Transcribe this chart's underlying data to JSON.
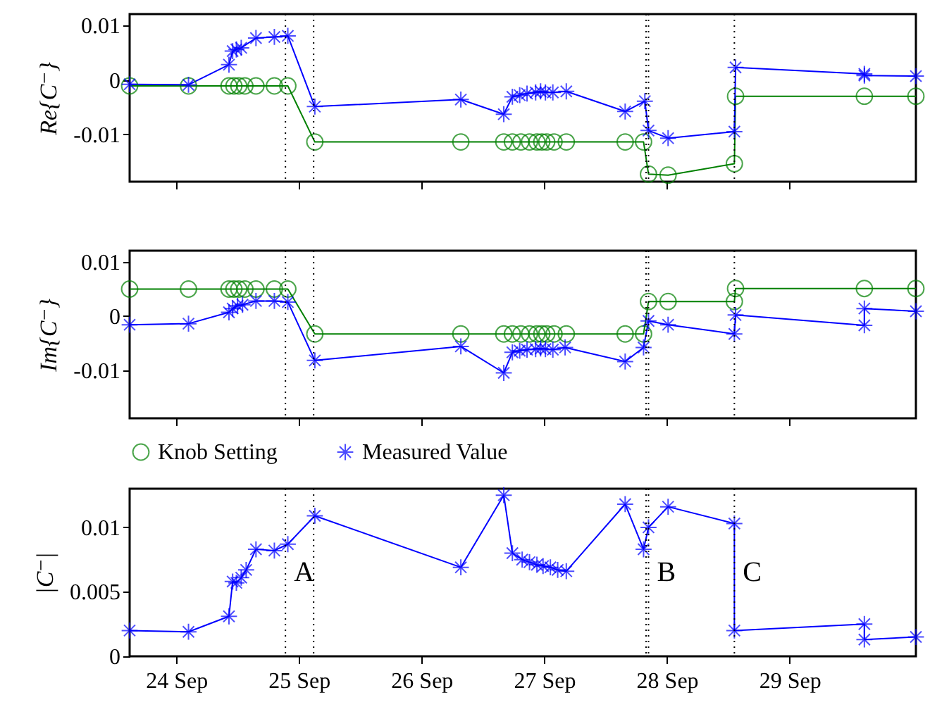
{
  "chart_data": [
    {
      "type": "line",
      "ylabel": "Re{C⁻}",
      "xlim": [
        "--09-23T14:53",
        "--09-30T00:43"
      ],
      "ylim": [
        -0.0187,
        0.0121
      ],
      "yticks": [
        -0.01,
        0,
        0.01
      ],
      "xticks": [
        {
          "value": "--09-24",
          "label": "24 Sep"
        },
        {
          "value": "--09-25",
          "label": "25 Sep"
        },
        {
          "value": "--09-26",
          "label": "26 Sep"
        },
        {
          "value": "--09-27",
          "label": "27 Sep"
        },
        {
          "value": "--09-28",
          "label": "28 Sep"
        },
        {
          "value": "--09-29",
          "label": "29 Sep"
        }
      ],
      "tick_labels": "y",
      "grid": false,
      "ref_lines": [
        {
          "axis": "x",
          "value": "--09-24T21:22",
          "line_style": "dotted"
        },
        {
          "axis": "x",
          "value": "--09-25T02:53",
          "line_style": "dotted"
        },
        {
          "axis": "x",
          "value": "--09-27T19:55",
          "line_style": "dotted"
        },
        {
          "axis": "x",
          "value": "--09-27T20:24",
          "line_style": "dotted"
        },
        {
          "axis": "x",
          "value": "--09-28T13:12",
          "line_style": "dotted"
        }
      ],
      "series": [
        {
          "color": "#008000",
          "marker": "circle",
          "x": [
            "--09-23T14:53",
            "--09-24T02:24",
            "--09-24T10:19",
            "--09-24T11:17",
            "--09-24T12:14",
            "--09-24T13:26",
            "--09-24T15:36",
            "--09-24T19:12",
            "--09-24T21:50",
            "--09-25T03:07",
            "--09-26T07:41",
            "--09-26T16:05",
            "--09-26T17:46",
            "--09-26T19:26",
            "--09-26T21:07",
            "--09-26T22:34",
            "--09-26T23:31",
            "--09-27T00:29",
            "--09-27T01:55",
            "--09-27T04:19",
            "--09-27T15:50",
            "--09-27T19:26",
            "--09-27T20:24",
            "--09-28T00:14",
            "--09-28T13:12",
            "--09-28T13:26",
            "--09-29T14:38",
            "--09-30T00:43"
          ],
          "values": [
            -0.0011,
            -0.0011,
            -0.0011,
            -0.0011,
            -0.0011,
            -0.0011,
            -0.0011,
            -0.0011,
            -0.0011,
            -0.0114,
            -0.0114,
            -0.0114,
            -0.0114,
            -0.0114,
            -0.0114,
            -0.0114,
            -0.0114,
            -0.0114,
            -0.0114,
            -0.0114,
            -0.0114,
            -0.0114,
            -0.0173,
            -0.0175,
            -0.0154,
            -0.003,
            -0.003,
            -0.003
          ]
        },
        {
          "color": "#0000ff",
          "marker": "cross",
          "x": [
            "--09-23T14:53",
            "--09-24T02:24",
            "--09-24T10:19",
            "--09-24T11:02",
            "--09-24T11:46",
            "--09-24T12:43",
            "--09-24T15:36",
            "--09-24T19:12",
            "--09-24T21:50",
            "--09-25T03:07",
            "--09-26T07:41",
            "--09-26T16:05",
            "--09-26T17:46",
            "--09-26T19:12",
            "--09-26T20:38",
            "--09-26T22:19",
            "--09-26T23:17",
            "--09-27T00:14",
            "--09-27T01:41",
            "--09-27T04:19",
            "--09-27T15:50",
            "--09-27T19:41",
            "--09-27T20:24",
            "--09-28T00:14",
            "--09-28T13:12",
            "--09-28T13:26",
            "--09-29T14:38",
            "--09-29T14:38",
            "--09-30T00:43"
          ],
          "values": [
            -0.0008,
            -0.0009,
            0.0028,
            0.0053,
            0.0056,
            0.0059,
            0.0077,
            0.0079,
            0.0081,
            -0.0049,
            -0.0036,
            -0.0063,
            -0.0031,
            -0.0028,
            -0.0025,
            -0.0023,
            -0.0021,
            -0.0023,
            -0.0023,
            -0.0021,
            -0.0058,
            -0.0039,
            -0.0093,
            -0.0107,
            -0.0095,
            0.0023,
            0.0011,
            0.0008,
            0.0007
          ]
        }
      ]
    },
    {
      "type": "line",
      "ylabel": "Im{C⁻}",
      "xlim": [
        "--09-23T14:53",
        "--09-30T00:43"
      ],
      "ylim": [
        -0.0189,
        0.0121
      ],
      "yticks": [
        -0.01,
        0,
        0.01
      ],
      "xticks": [
        {
          "value": "--09-24",
          "label": "24 Sep"
        },
        {
          "value": "--09-25",
          "label": "25 Sep"
        },
        {
          "value": "--09-26",
          "label": "26 Sep"
        },
        {
          "value": "--09-27",
          "label": "27 Sep"
        },
        {
          "value": "--09-28",
          "label": "28 Sep"
        },
        {
          "value": "--09-29",
          "label": "29 Sep"
        }
      ],
      "tick_labels": "y",
      "legend": "bottom",
      "grid": false,
      "ref_lines": [
        {
          "axis": "x",
          "value": "--09-24T21:22",
          "line_style": "dotted"
        },
        {
          "axis": "x",
          "value": "--09-25T02:53",
          "line_style": "dotted"
        },
        {
          "axis": "x",
          "value": "--09-27T19:55",
          "line_style": "dotted"
        },
        {
          "axis": "x",
          "value": "--09-27T20:24",
          "line_style": "dotted"
        },
        {
          "axis": "x",
          "value": "--09-28T13:12",
          "line_style": "dotted"
        }
      ],
      "series": [
        {
          "name": "Knob Setting",
          "color": "#008000",
          "marker": "circle",
          "x": [
            "--09-23T14:53",
            "--09-24T02:24",
            "--09-24T10:19",
            "--09-24T11:17",
            "--09-24T12:14",
            "--09-24T13:26",
            "--09-24T15:36",
            "--09-24T19:12",
            "--09-24T21:50",
            "--09-25T03:07",
            "--09-26T07:41",
            "--09-26T16:05",
            "--09-26T17:46",
            "--09-26T19:26",
            "--09-26T21:07",
            "--09-26T22:34",
            "--09-26T23:31",
            "--09-27T00:29",
            "--09-27T01:55",
            "--09-27T04:19",
            "--09-27T15:50",
            "--09-27T19:26",
            "--09-27T20:24",
            "--09-28T00:14",
            "--09-28T13:12",
            "--09-28T13:26",
            "--09-29T14:38",
            "--09-30T00:43"
          ],
          "values": [
            0.005,
            0.005,
            0.005,
            0.005,
            0.005,
            0.005,
            0.005,
            0.005,
            0.005,
            -0.0033,
            -0.0033,
            -0.0033,
            -0.0033,
            -0.0033,
            -0.0033,
            -0.0033,
            -0.0033,
            -0.0033,
            -0.0033,
            -0.0033,
            -0.0033,
            -0.0033,
            0.0027,
            0.0027,
            0.0027,
            0.0051,
            0.0051,
            0.0051
          ]
        },
        {
          "name": "Measured Value",
          "color": "#0000ff",
          "marker": "cross",
          "x": [
            "--09-23T14:53",
            "--09-24T02:24",
            "--09-24T10:19",
            "--09-24T11:02",
            "--09-24T12:00",
            "--09-24T12:58",
            "--09-24T15:36",
            "--09-24T19:12",
            "--09-24T21:50",
            "--09-25T03:07",
            "--09-26T07:41",
            "--09-26T16:05",
            "--09-26T17:46",
            "--09-26T19:12",
            "--09-26T20:38",
            "--09-26T22:19",
            "--09-26T23:17",
            "--09-27T00:14",
            "--09-27T01:41",
            "--09-27T04:05",
            "--09-27T15:50",
            "--09-27T19:26",
            "--09-27T20:24",
            "--09-28T00:14",
            "--09-28T13:12",
            "--09-28T13:26",
            "--09-29T14:38",
            "--09-29T14:38",
            "--09-30T00:43"
          ],
          "values": [
            -0.0016,
            -0.0014,
            0.0007,
            0.0014,
            0.0019,
            0.0021,
            0.0028,
            0.0028,
            0.0026,
            -0.0082,
            -0.0056,
            -0.0105,
            -0.0067,
            -0.0064,
            -0.0062,
            -0.0061,
            -0.006,
            -0.0061,
            -0.0062,
            -0.0058,
            -0.0084,
            -0.0058,
            -0.0009,
            -0.0016,
            -0.0033,
            0.0002,
            -0.0017,
            0.0014,
            0.0009
          ]
        }
      ]
    },
    {
      "type": "line",
      "ylabel": "|C⁻|",
      "xlim": [
        "--09-23T14:53",
        "--09-30T00:43"
      ],
      "ylim": [
        0,
        0.013
      ],
      "yticks": [
        0,
        0.005,
        0.01
      ],
      "xticks": [
        {
          "value": "--09-24",
          "label": "24 Sep"
        },
        {
          "value": "--09-25",
          "label": "25 Sep"
        },
        {
          "value": "--09-26",
          "label": "26 Sep"
        },
        {
          "value": "--09-27",
          "label": "27 Sep"
        },
        {
          "value": "--09-28",
          "label": "28 Sep"
        },
        {
          "value": "--09-29",
          "label": "29 Sep"
        }
      ],
      "grid": false,
      "ref_lines": [
        {
          "axis": "x",
          "value": "--09-24T21:22",
          "line_style": "dotted",
          "label": "A"
        },
        {
          "axis": "x",
          "value": "--09-25T02:53",
          "line_style": "dotted"
        },
        {
          "axis": "x",
          "value": "--09-27T19:55",
          "line_style": "dotted"
        },
        {
          "axis": "x",
          "value": "--09-27T20:24",
          "line_style": "dotted",
          "label": "B"
        },
        {
          "axis": "x",
          "value": "--09-28T13:12",
          "line_style": "dotted",
          "label": "C"
        }
      ],
      "series": [
        {
          "color": "#0000ff",
          "marker": "cross",
          "x": [
            "--09-23T14:53",
            "--09-24T02:24",
            "--09-24T10:19",
            "--09-24T11:02",
            "--09-24T11:46",
            "--09-24T12:43",
            "--09-24T13:41",
            "--09-24T15:36",
            "--09-24T19:12",
            "--09-24T21:50",
            "--09-25T03:07",
            "--09-26T07:41",
            "--09-26T16:05",
            "--09-26T17:46",
            "--09-26T19:41",
            "--09-26T21:07",
            "--09-26T22:34",
            "--09-26T23:46",
            "--09-27T01:12",
            "--09-27T02:38",
            "--09-27T04:19",
            "--09-27T15:50",
            "--09-27T19:26",
            "--09-27T20:24",
            "--09-28T00:14",
            "--09-28T13:12",
            "--09-28T13:12",
            "--09-29T14:38",
            "--09-29T14:38",
            "--09-30T00:43"
          ],
          "values": [
            0.002,
            0.0019,
            0.0031,
            0.0058,
            0.0057,
            0.0061,
            0.0067,
            0.0083,
            0.0082,
            0.0087,
            0.0109,
            0.0069,
            0.0125,
            0.008,
            0.0075,
            0.0073,
            0.0071,
            0.007,
            0.0069,
            0.0067,
            0.0066,
            0.0118,
            0.0083,
            0.01,
            0.0116,
            0.0103,
            0.002,
            0.0025,
            0.0013,
            0.0015
          ]
        }
      ]
    }
  ]
}
